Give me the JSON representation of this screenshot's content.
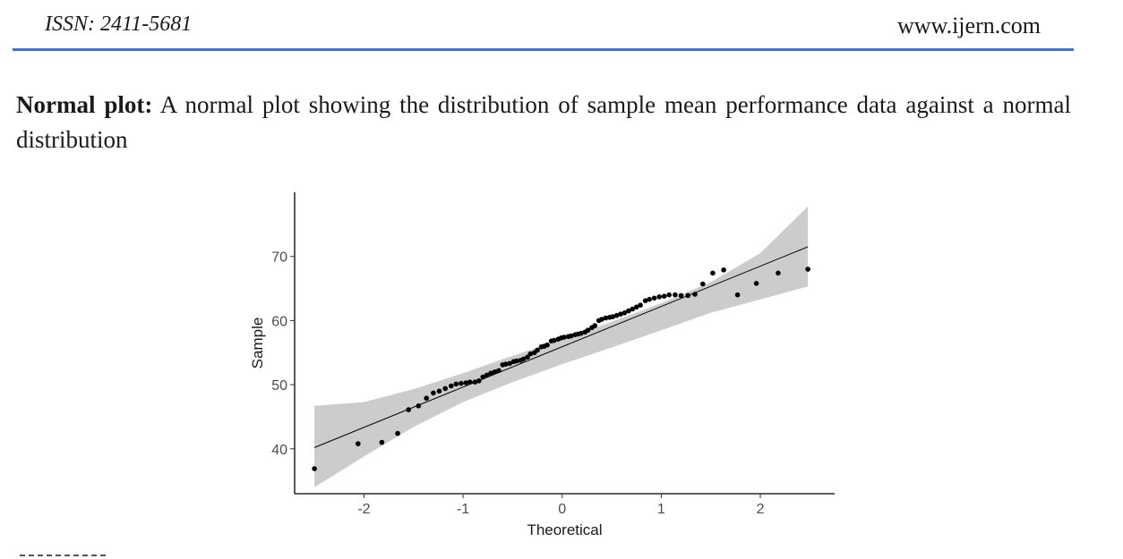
{
  "header": {
    "issn": "ISSN: 2411-5681",
    "website": "www.ijern.com",
    "rule_color": "#4472c4"
  },
  "caption": {
    "bold_lead": "Normal plot:",
    "text": " A normal plot showing the distribution of sample mean performance data against a normal distribution"
  },
  "chart_data": {
    "type": "scatter",
    "title": "",
    "xlabel": "Theoretical",
    "ylabel": "Sample",
    "xlim": [
      -2.7,
      2.75
    ],
    "ylim": [
      33,
      80
    ],
    "xticks": [
      "-2",
      "-1",
      "0",
      "1",
      "2"
    ],
    "yticks": [
      "40",
      "50",
      "60",
      "70"
    ],
    "grid": false,
    "legend": "none",
    "point_color": "#000000",
    "band_color": "#cccccc",
    "line_color": "#000000",
    "reference_line": {
      "x": [
        -2.5,
        2.48
      ],
      "y": [
        40.2,
        71.5
      ]
    },
    "confidence_band": {
      "x": [
        -2.5,
        -2.0,
        -1.5,
        -1.0,
        -0.5,
        0.0,
        0.5,
        1.0,
        1.5,
        2.0,
        2.48
      ],
      "upper": [
        46.7,
        47.3,
        49.3,
        51.8,
        54.5,
        57.0,
        59.8,
        62.7,
        66.0,
        70.5,
        77.8
      ],
      "lower": [
        34.0,
        38.8,
        43.4,
        47.3,
        50.4,
        53.2,
        55.8,
        58.5,
        61.2,
        63.3,
        65.3
      ]
    },
    "points": {
      "x": [
        -2.5,
        -2.06,
        -1.82,
        -1.66,
        -1.55,
        -1.45,
        -1.37,
        -1.3,
        -1.24,
        -1.18,
        -1.12,
        -1.07,
        -1.02,
        -0.97,
        -0.93,
        -0.88,
        -0.84,
        -0.8,
        -0.76,
        -0.72,
        -0.68,
        -0.64,
        -0.6,
        -0.57,
        -0.53,
        -0.49,
        -0.46,
        -0.42,
        -0.39,
        -0.35,
        -0.32,
        -0.28,
        -0.25,
        -0.21,
        -0.18,
        -0.15,
        -0.11,
        -0.08,
        -0.04,
        -0.01,
        0.02,
        0.06,
        0.09,
        0.13,
        0.16,
        0.19,
        0.23,
        0.26,
        0.3,
        0.33,
        0.37,
        0.4,
        0.44,
        0.48,
        0.51,
        0.55,
        0.59,
        0.63,
        0.67,
        0.71,
        0.75,
        0.79,
        0.84,
        0.88,
        0.93,
        0.98,
        1.03,
        1.08,
        1.14,
        1.2,
        1.27,
        1.34,
        1.42,
        1.52,
        1.63,
        1.77,
        1.96,
        2.18,
        2.48
      ],
      "y": [
        36.9,
        40.8,
        41.0,
        42.4,
        46.1,
        46.7,
        47.9,
        48.7,
        49.0,
        49.4,
        49.8,
        50.1,
        50.2,
        50.3,
        50.4,
        50.4,
        50.6,
        51.2,
        51.5,
        51.8,
        52.0,
        52.2,
        53.1,
        53.2,
        53.3,
        53.6,
        53.7,
        53.8,
        54.0,
        54.3,
        54.8,
        55.0,
        55.4,
        55.9,
        56.0,
        56.2,
        56.8,
        56.9,
        57.1,
        57.3,
        57.4,
        57.5,
        57.6,
        57.8,
        57.9,
        58.0,
        58.2,
        58.5,
        58.9,
        59.2,
        60.0,
        60.2,
        60.4,
        60.5,
        60.6,
        60.8,
        61.0,
        61.2,
        61.5,
        61.8,
        62.1,
        62.4,
        63.1,
        63.3,
        63.5,
        63.7,
        63.8,
        64.0,
        64.0,
        63.9,
        63.9,
        64.1,
        65.7,
        67.4,
        67.9,
        64.0,
        65.8,
        67.4,
        68.0
      ]
    }
  }
}
